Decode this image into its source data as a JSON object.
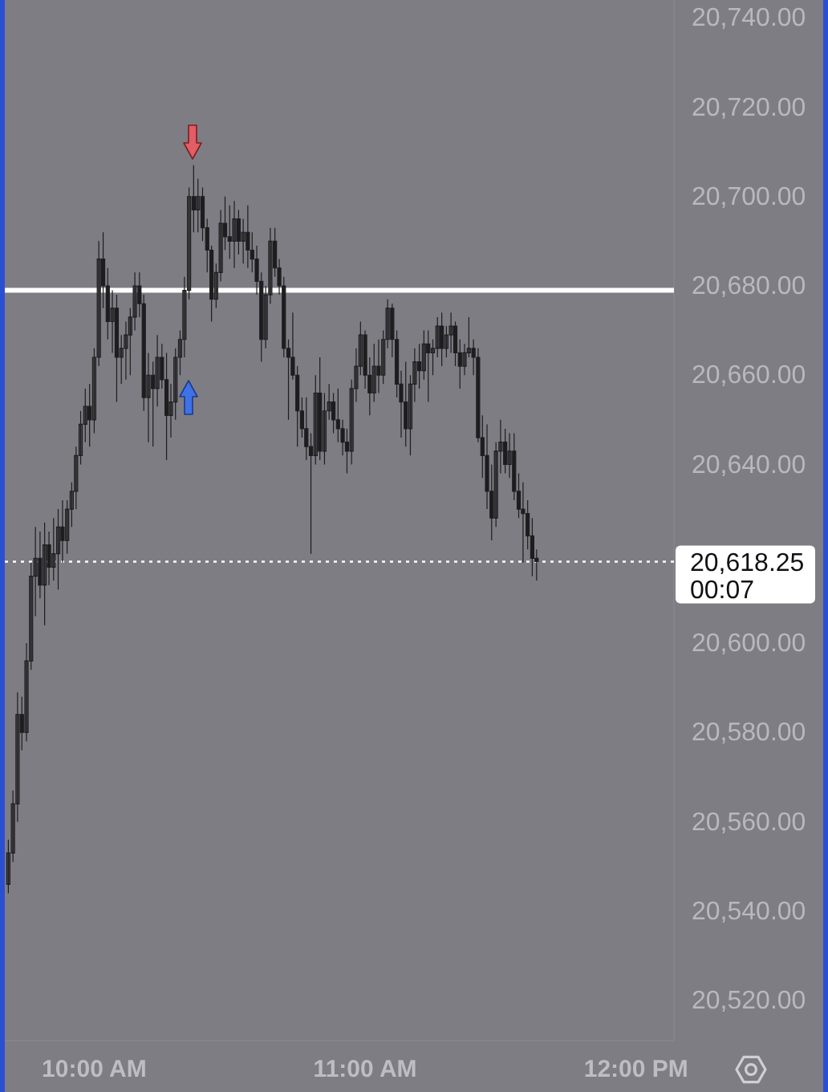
{
  "chart_data": {
    "type": "candlestick",
    "color": "#1e1e20",
    "x": [
      9.683,
      9.7,
      9.717,
      9.733,
      9.75,
      9.767,
      9.783,
      9.8,
      9.817,
      9.833,
      9.85,
      9.867,
      9.883,
      9.9,
      9.917,
      9.933,
      9.95,
      9.967,
      9.983,
      10.0,
      10.017,
      10.033,
      10.05,
      10.067,
      10.083,
      10.1,
      10.117,
      10.133,
      10.15,
      10.167,
      10.183,
      10.2,
      10.217,
      10.233,
      10.25,
      10.267,
      10.283,
      10.3,
      10.317,
      10.333,
      10.35,
      10.367,
      10.383,
      10.4,
      10.417,
      10.433,
      10.45,
      10.467,
      10.483,
      10.5,
      10.517,
      10.533,
      10.55,
      10.567,
      10.583,
      10.6,
      10.617,
      10.633,
      10.65,
      10.667,
      10.683,
      10.7,
      10.717,
      10.733,
      10.75,
      10.767,
      10.783,
      10.8,
      10.817,
      10.833,
      10.85,
      10.867,
      10.883,
      10.9,
      10.917,
      10.933,
      10.95,
      10.967,
      10.983,
      11.0,
      11.017,
      11.033,
      11.05,
      11.067,
      11.083,
      11.1,
      11.117,
      11.133,
      11.15,
      11.167,
      11.183,
      11.2,
      11.217,
      11.233,
      11.25,
      11.267,
      11.283,
      11.3,
      11.317,
      11.333,
      11.35,
      11.367,
      11.383,
      11.4,
      11.417,
      11.433,
      11.45,
      11.467,
      11.483,
      11.5,
      11.517,
      11.533,
      11.55,
      11.567,
      11.583,
      11.6,
      11.617,
      11.633
    ],
    "ohlc": [
      [
        20546,
        20556,
        20544,
        20553
      ],
      [
        20553,
        20567,
        20551,
        20564
      ],
      [
        20564,
        20589,
        20560,
        20584
      ],
      [
        20584,
        20588,
        20576,
        20580
      ],
      [
        20580,
        20600,
        20578,
        20596
      ],
      [
        20596,
        20618,
        20594,
        20615
      ],
      [
        20615,
        20626,
        20606,
        20619
      ],
      [
        20619,
        20625,
        20610,
        20613
      ],
      [
        20613,
        20627,
        20604,
        20622
      ],
      [
        20622,
        20625,
        20613,
        20617
      ],
      [
        20617,
        20628,
        20614,
        20620
      ],
      [
        20620,
        20630,
        20612,
        20626
      ],
      [
        20626,
        20632,
        20618,
        20623
      ],
      [
        20623,
        20632,
        20620,
        20630
      ],
      [
        20630,
        20636,
        20626,
        20634
      ],
      [
        20634,
        20644,
        20630,
        20642
      ],
      [
        20642,
        20652,
        20640,
        20649
      ],
      [
        20649,
        20657,
        20645,
        20653
      ],
      [
        20653,
        20658,
        20644,
        20650
      ],
      [
        20650,
        20666,
        20647,
        20664
      ],
      [
        20664,
        20690,
        20662,
        20686
      ],
      [
        20686,
        20692,
        20675,
        20680
      ],
      [
        20680,
        20684,
        20668,
        20672
      ],
      [
        20672,
        20679,
        20665,
        20675
      ],
      [
        20675,
        20678,
        20654,
        20664
      ],
      [
        20664,
        20669,
        20658,
        20666
      ],
      [
        20666,
        20672,
        20659,
        20669
      ],
      [
        20669,
        20675,
        20660,
        20673
      ],
      [
        20673,
        20683,
        20670,
        20680
      ],
      [
        20680,
        20683,
        20673,
        20676
      ],
      [
        20676,
        20678,
        20652,
        20655
      ],
      [
        20655,
        20665,
        20645,
        20660
      ],
      [
        20660,
        20663,
        20644,
        20657
      ],
      [
        20657,
        20669,
        20653,
        20664
      ],
      [
        20664,
        20667,
        20657,
        20659
      ],
      [
        20659,
        20665,
        20641,
        20651
      ],
      [
        20651,
        20658,
        20646,
        20654
      ],
      [
        20654,
        20666,
        20650,
        20664
      ],
      [
        20664,
        20670,
        20660,
        20668
      ],
      [
        20668,
        20682,
        20664,
        20679
      ],
      [
        20679,
        20702,
        20677,
        20700
      ],
      [
        20700,
        20707,
        20692,
        20697
      ],
      [
        20697,
        20704,
        20692,
        20700
      ],
      [
        20700,
        20702,
        20690,
        20693
      ],
      [
        20693,
        20695,
        20683,
        20688
      ],
      [
        20688,
        20689,
        20672,
        20677
      ],
      [
        20677,
        20685,
        20675,
        20683
      ],
      [
        20683,
        20697,
        20681,
        20694
      ],
      [
        20694,
        20700,
        20688,
        20691
      ],
      [
        20691,
        20698,
        20686,
        20690
      ],
      [
        20690,
        20699,
        20684,
        20695
      ],
      [
        20695,
        20697,
        20687,
        20690
      ],
      [
        20690,
        20695,
        20685,
        20692
      ],
      [
        20692,
        20698,
        20684,
        20688
      ],
      [
        20688,
        20692,
        20683,
        20686
      ],
      [
        20686,
        20689,
        20678,
        20681
      ],
      [
        20681,
        20683,
        20663,
        20668
      ],
      [
        20668,
        20680,
        20666,
        20678
      ],
      [
        20678,
        20693,
        20676,
        20690
      ],
      [
        20690,
        20693,
        20682,
        20684
      ],
      [
        20684,
        20686,
        20678,
        20680
      ],
      [
        20680,
        20682,
        20664,
        20666
      ],
      [
        20666,
        20668,
        20650,
        20664
      ],
      [
        20664,
        20674,
        20659,
        20660
      ],
      [
        20660,
        20662,
        20644,
        20652
      ],
      [
        20652,
        20655,
        20646,
        20648
      ],
      [
        20648,
        20655,
        20641,
        20644
      ],
      [
        20644,
        20647,
        20620,
        20642
      ],
      [
        20642,
        20660,
        20640,
        20656
      ],
      [
        20656,
        20664,
        20641,
        20643
      ],
      [
        20643,
        20656,
        20640,
        20652
      ],
      [
        20652,
        20658,
        20650,
        20654
      ],
      [
        20654,
        20656,
        20647,
        20650
      ],
      [
        20650,
        20657,
        20645,
        20648
      ],
      [
        20648,
        20650,
        20642,
        20645
      ],
      [
        20645,
        20648,
        20638,
        20643
      ],
      [
        20643,
        20659,
        20640,
        20657
      ],
      [
        20657,
        20666,
        20654,
        20662
      ],
      [
        20662,
        20672,
        20660,
        20669
      ],
      [
        20669,
        20670,
        20657,
        20660
      ],
      [
        20660,
        20664,
        20651,
        20656
      ],
      [
        20656,
        20667,
        20654,
        20662
      ],
      [
        20662,
        20668,
        20656,
        20660
      ],
      [
        20660,
        20670,
        20658,
        20668
      ],
      [
        20668,
        20677,
        20666,
        20675
      ],
      [
        20675,
        20676,
        20664,
        20668
      ],
      [
        20668,
        20670,
        20655,
        20658
      ],
      [
        20658,
        20661,
        20646,
        20654
      ],
      [
        20654,
        20663,
        20644,
        20648
      ],
      [
        20648,
        20660,
        20642,
        20658
      ],
      [
        20658,
        20666,
        20654,
        20663
      ],
      [
        20663,
        20667,
        20657,
        20661
      ],
      [
        20661,
        20670,
        20659,
        20667
      ],
      [
        20667,
        20670,
        20654,
        20665
      ],
      [
        20665,
        20668,
        20660,
        20666
      ],
      [
        20666,
        20673,
        20664,
        20671
      ],
      [
        20671,
        20674,
        20662,
        20666
      ],
      [
        20666,
        20671,
        20664,
        20669
      ],
      [
        20669,
        20674,
        20665,
        20671
      ],
      [
        20671,
        20672,
        20662,
        20665
      ],
      [
        20665,
        20668,
        20657,
        20662
      ],
      [
        20662,
        20667,
        20660,
        20665
      ],
      [
        20665,
        20673,
        20664,
        20666
      ],
      [
        20666,
        20668,
        20660,
        20664
      ],
      [
        20664,
        20666,
        20645,
        20646
      ],
      [
        20646,
        20651,
        20637,
        20642
      ],
      [
        20642,
        20649,
        20630,
        20634
      ],
      [
        20634,
        20640,
        20623,
        20628
      ],
      [
        20628,
        20645,
        20626,
        20643
      ],
      [
        20643,
        20650,
        20638,
        20645
      ],
      [
        20645,
        20648,
        20638,
        20640
      ],
      [
        20640,
        20647,
        20637,
        20643
      ],
      [
        20643,
        20647,
        20632,
        20634
      ],
      [
        20634,
        20638,
        20628,
        20630
      ],
      [
        20630,
        20636,
        20618,
        20629
      ],
      [
        20629,
        20632,
        20621,
        20624
      ],
      [
        20624,
        20628,
        20615,
        20619
      ],
      [
        20619,
        20621,
        20614,
        20618.25
      ]
    ],
    "xlim": [
      9.67,
      12.14
    ],
    "xticks": [
      {
        "value": 10,
        "label": "10:00 AM"
      },
      {
        "value": 11,
        "label": "11:00 AM"
      },
      {
        "value": 12,
        "label": "12:00 PM"
      }
    ],
    "ylim": [
      20511,
      20744
    ],
    "yticks": [
      {
        "value": 20520,
        "label": "20,520.00"
      },
      {
        "value": 20540,
        "label": "20,540.00"
      },
      {
        "value": 20560,
        "label": "20,560.00"
      },
      {
        "value": 20580,
        "label": "20,580.00"
      },
      {
        "value": 20600,
        "label": "20,600.00"
      },
      {
        "value": 20640,
        "label": "20,640.00"
      },
      {
        "value": 20660,
        "label": "20,660.00"
      },
      {
        "value": 20680,
        "label": "20,680.00"
      },
      {
        "value": 20700,
        "label": "20,700.00"
      },
      {
        "value": 20720,
        "label": "20,720.00"
      },
      {
        "value": 20740,
        "label": "20,740.00"
      }
    ],
    "ref_lines": [
      {
        "axis": "y",
        "value": 20679,
        "color": "#ffffff",
        "line_style": "solid"
      },
      {
        "axis": "y",
        "value": 20618.25,
        "label": "20,618.25",
        "color": "#ffffff",
        "line_style": "dotted"
      }
    ],
    "annotations": [
      "00:07"
    ]
  }
}
